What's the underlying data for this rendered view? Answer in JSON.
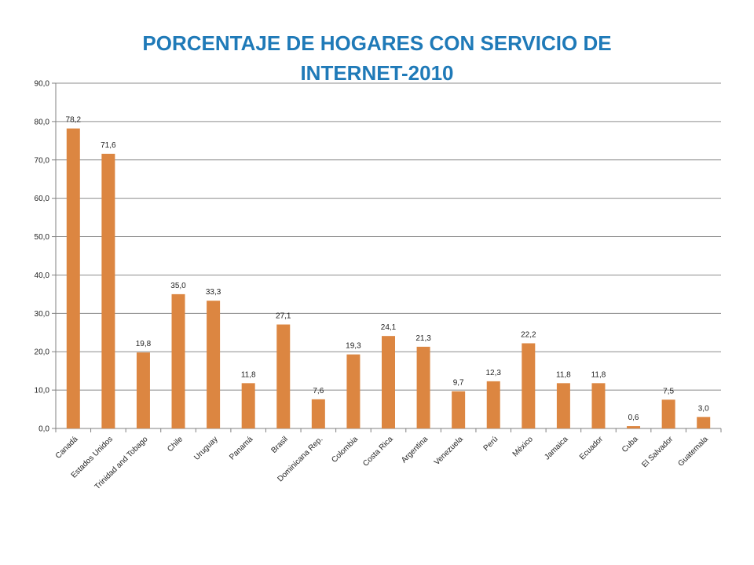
{
  "chart_data": {
    "type": "bar",
    "title_line1": "PORCENTAJE DE HOGARES CON SERVICIO DE",
    "title_line2": "INTERNET-2010",
    "categories": [
      "Canadá",
      "Estados Unidos",
      "Trinidad and Tobago",
      "Chile",
      "Uruguay",
      "Panamá",
      "Brasil",
      "Dominicana Rep.",
      "Colombia",
      "Costa Rica",
      "Argentina",
      "Venezuela",
      "Perú",
      "México",
      "Jamaica",
      "Ecuador",
      "Cuba",
      "El Salvador",
      "Guatemala"
    ],
    "values": [
      78.2,
      71.6,
      19.8,
      35.0,
      33.3,
      11.8,
      27.1,
      7.6,
      19.3,
      24.1,
      21.3,
      9.7,
      12.3,
      22.2,
      11.8,
      11.8,
      0.6,
      7.5,
      3.0
    ],
    "value_labels": [
      "78,2",
      "71,6",
      "19,8",
      "35,0",
      "33,3",
      "11,8",
      "27,1",
      "7,6",
      "19,3",
      "24,1",
      "21,3",
      "9,7",
      "12,3",
      "22,2",
      "11,8",
      "11,8",
      "0,6",
      "7,5",
      "3,0"
    ],
    "ylim": [
      0,
      90
    ],
    "y_ticks": [
      0,
      10,
      20,
      30,
      40,
      50,
      60,
      70,
      80,
      90
    ],
    "y_tick_labels": [
      "0,0",
      "10,0",
      "20,0",
      "30,0",
      "40,0",
      "50,0",
      "60,0",
      "70,0",
      "80,0",
      "90,0"
    ],
    "grid": true,
    "legend": "none",
    "bar_color": "#dc8641",
    "title_color": "#1f7ab8"
  }
}
